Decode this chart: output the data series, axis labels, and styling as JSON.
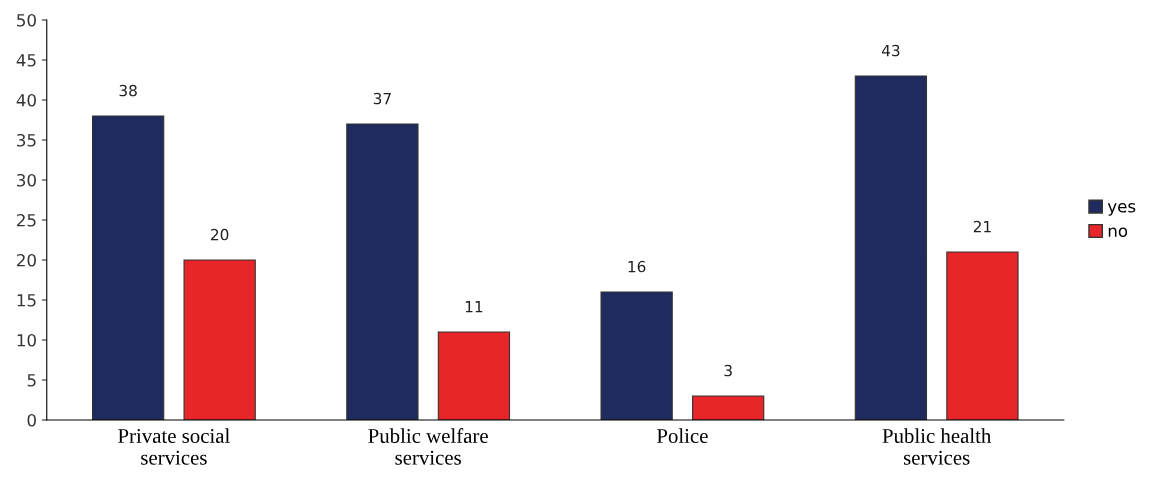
{
  "chart_data": {
    "type": "bar",
    "categories": [
      "Private social services",
      "Public welfare services",
      "Police",
      "Public health services"
    ],
    "series": [
      {
        "name": "yes",
        "color": "#1f2a5e",
        "values": [
          38,
          37,
          16,
          43
        ]
      },
      {
        "name": "no",
        "color": "#e8262a",
        "values": [
          20,
          11,
          3,
          21
        ]
      }
    ],
    "ylim": [
      0,
      50
    ],
    "yticks": [
      0,
      5,
      10,
      15,
      20,
      25,
      30,
      35,
      40,
      45,
      50
    ],
    "data_labels": true,
    "legend": "right",
    "grid": false
  }
}
